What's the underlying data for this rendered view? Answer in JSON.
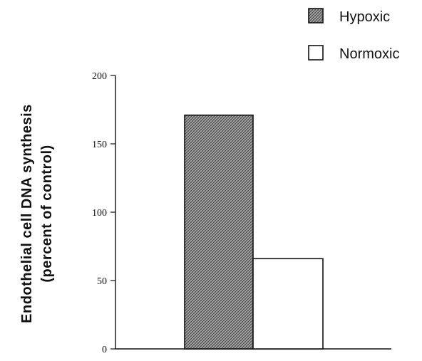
{
  "chart_data": {
    "type": "bar",
    "categories": [
      "Hypoxic",
      "Normoxic"
    ],
    "values": [
      171,
      66
    ],
    "ylabel_line1": "Endothelial cell DNA synthesis",
    "ylabel_line2": "(percent of control)",
    "ylim": [
      0,
      200
    ],
    "yticks": [
      0,
      50,
      100,
      150,
      200
    ],
    "legend": {
      "placement": "top-right",
      "entries": [
        {
          "label": "Hypoxic",
          "fill": "#8c8c8c",
          "pattern": "crosshatch"
        },
        {
          "label": "Normoxic",
          "fill": "#ffffff",
          "pattern": "none"
        }
      ]
    },
    "grid": false
  }
}
